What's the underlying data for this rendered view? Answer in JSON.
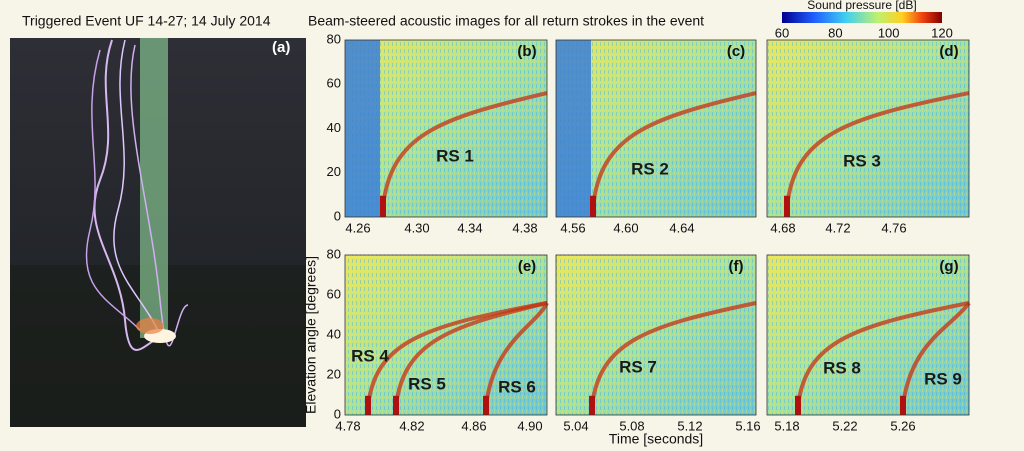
{
  "header": {
    "left_title": "Triggered Event UF 14-27; 14 July 2014",
    "right_title": "Beam-steered acoustic images for all return strokes in the event"
  },
  "photo_label": "(a)",
  "colorbar": {
    "label": "Sound pressure [dB]",
    "ticks": [
      "60",
      "80",
      "100",
      "120"
    ]
  },
  "y_axis": {
    "label": "Elevation angle [degrees]",
    "ticks": [
      "0",
      "20",
      "40",
      "60",
      "80"
    ]
  },
  "x_axis": {
    "label": "Time [seconds]"
  },
  "panels": [
    {
      "label": "(b)",
      "xticks": [
        "4.26",
        "4.30",
        "4.34",
        "4.38"
      ],
      "strokes": [
        "RS 1"
      ]
    },
    {
      "label": "(c)",
      "xticks": [
        "4.56",
        "4.60",
        "4.64"
      ],
      "strokes": [
        "RS 2"
      ]
    },
    {
      "label": "(d)",
      "xticks": [
        "4.68",
        "4.72",
        "4.76"
      ],
      "strokes": [
        "RS 3"
      ]
    },
    {
      "label": "(e)",
      "xticks": [
        "4.78",
        "4.82",
        "4.86",
        "4.90"
      ],
      "strokes": [
        "RS 4",
        "RS 5",
        "RS 6"
      ]
    },
    {
      "label": "(f)",
      "xticks": [
        "5.04",
        "5.08",
        "5.12",
        "5.16"
      ],
      "strokes": [
        "RS 7"
      ]
    },
    {
      "label": "(g)",
      "xticks": [
        "5.18",
        "5.22",
        "5.26"
      ],
      "strokes": [
        "RS 8",
        "RS 9"
      ]
    }
  ]
}
